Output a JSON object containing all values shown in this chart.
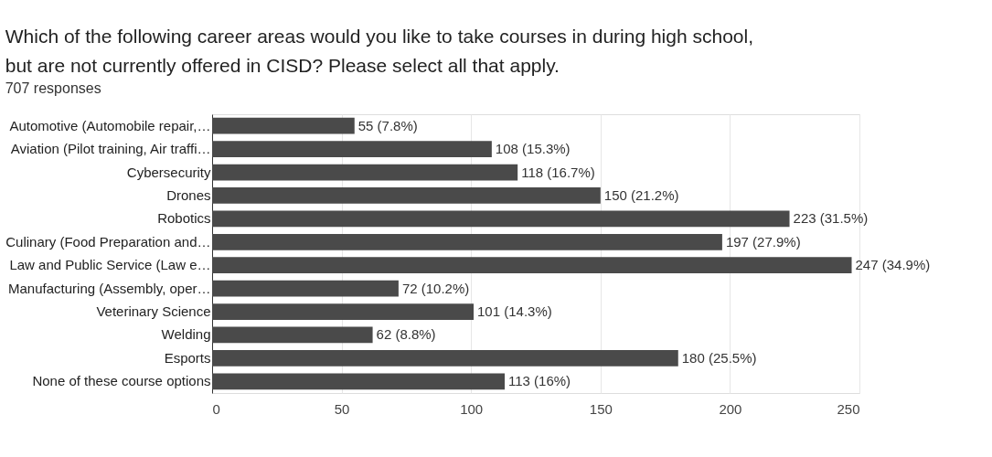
{
  "chart_data": {
    "type": "bar",
    "orientation": "horizontal",
    "title": "Which of the following career areas would you like to take courses in during high school, but are not currently offered in CISD? Please select all that apply.",
    "subtitle": "707 responses",
    "categories": [
      "Automotive (Automobile repair,…",
      "Aviation (Pilot training, Air traffi…",
      "Cybersecurity",
      "Drones",
      "Robotics",
      "Culinary (Food Preparation and…",
      "Law and Public Service (Law e…",
      "Manufacturing (Assembly, oper…",
      "Veterinary Science",
      "Welding",
      "Esports",
      "None of these course options"
    ],
    "values": [
      55,
      108,
      118,
      150,
      223,
      197,
      247,
      72,
      101,
      62,
      180,
      113
    ],
    "value_labels": [
      "55 (7.8%)",
      "108 (15.3%)",
      "118 (16.7%)",
      "150 (21.2%)",
      "223 (31.5%)",
      "197 (27.9%)",
      "247 (34.9%)",
      "72 (10.2%)",
      "101 (14.3%)",
      "62 (8.8%)",
      "180 (25.5%)",
      "113 (16%)"
    ],
    "color": "#4a4a4a",
    "xlim": [
      0,
      250
    ],
    "xticks": [
      0,
      50,
      100,
      150,
      200,
      250
    ],
    "grid": "x"
  }
}
